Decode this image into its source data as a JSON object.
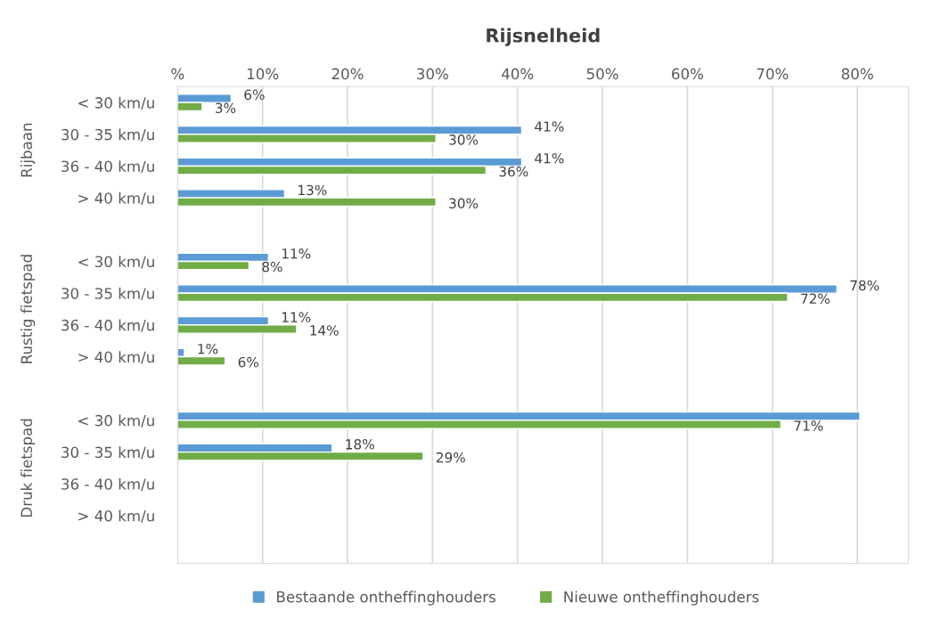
{
  "chart_data": {
    "type": "bar",
    "orientation": "horizontal",
    "title": "Rijsnelheid",
    "categories": [
      "< 30 km/u",
      "30 - 35 km/u",
      "36 - 40 km/u",
      "> 40 km/u",
      null,
      "< 30 km/u",
      "30 - 35 km/u",
      "36 - 40 km/u",
      "> 40 km/u",
      null,
      "< 30 km/u",
      "30 - 35 km/u",
      "36 - 40 km/u",
      "> 40 km/u",
      null
    ],
    "series": [
      {
        "name": "Bestaande ontheffinghouders",
        "color": "#5b9bd5",
        "values": [
          6.3,
          40.5,
          40.5,
          12.6,
          null,
          10.7,
          77.6,
          10.7,
          0.8,
          null,
          80.3,
          18.2,
          null,
          null,
          null
        ],
        "value_labels": [
          "6%",
          "41%",
          "41%",
          "13%",
          null,
          "11%",
          "78%",
          "11%",
          "1%",
          null,
          null,
          "18%",
          null,
          null,
          null
        ]
      },
      {
        "name": "Nieuwe ontheffinghouders",
        "color": "#70ad47",
        "values": [
          2.9,
          30.4,
          36.3,
          30.4,
          null,
          8.4,
          71.8,
          14.0,
          5.6,
          null,
          71.0,
          28.9,
          null,
          null,
          null
        ],
        "value_labels": [
          "3%",
          "30%",
          "36%",
          "30%",
          null,
          "8%",
          "72%",
          "14%",
          "6%",
          null,
          "71%",
          "29%",
          null,
          null,
          null
        ]
      }
    ],
    "annotations": [
      "Rijbaan",
      "Rustig fietspad",
      "Druk fietspad"
    ],
    "xlim": [
      0,
      86
    ],
    "xticks": [
      {
        "value": 0,
        "label": "%"
      },
      {
        "value": 10,
        "label": "10%"
      },
      {
        "value": 20,
        "label": "20%"
      },
      {
        "value": 30,
        "label": "30%"
      },
      {
        "value": 40,
        "label": "40%"
      },
      {
        "value": 50,
        "label": "50%"
      },
      {
        "value": 60,
        "label": "60%"
      },
      {
        "value": 70,
        "label": "70%"
      },
      {
        "value": 80,
        "label": "80%"
      }
    ],
    "grid": "x",
    "legend": "bottom"
  }
}
